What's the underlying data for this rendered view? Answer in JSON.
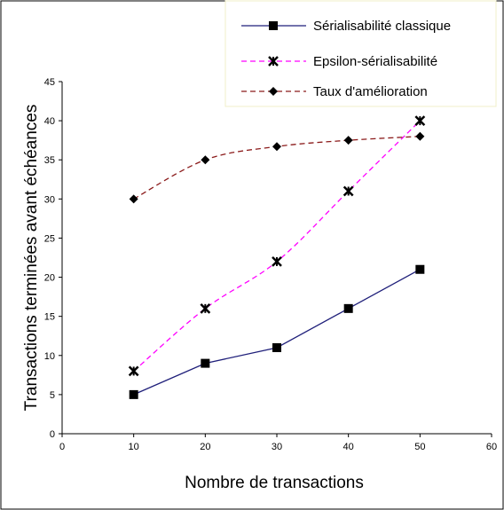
{
  "chart_data": {
    "type": "line",
    "xlabel": "Nombre de transactions",
    "ylabel": "Transactions terminées avant échéances",
    "xlim": [
      0,
      60
    ],
    "ylim": [
      0,
      45
    ],
    "xticks": [
      0,
      10,
      20,
      30,
      40,
      50,
      60
    ],
    "yticks": [
      0,
      5,
      10,
      15,
      20,
      25,
      30,
      35,
      40,
      45
    ],
    "grid": false,
    "legend_position": "top-right",
    "x": [
      10,
      20,
      30,
      40,
      50
    ],
    "series": [
      {
        "name": "Sérialisabilité classique",
        "values": [
          5,
          9,
          11,
          16,
          21
        ],
        "color": "#1f1f7a",
        "line_style": "solid",
        "marker": "square"
      },
      {
        "name": "Epsilon-sérialisabilité",
        "values": [
          8,
          16,
          22,
          31,
          40
        ],
        "color": "#ff00ff",
        "line_style": "dashed",
        "marker": "star"
      },
      {
        "name": "Taux d'amélioration",
        "values": [
          30,
          35,
          36.7,
          37.5,
          38
        ],
        "color": "#8b1a1a",
        "line_style": "dashed",
        "marker": "diamond"
      }
    ]
  }
}
